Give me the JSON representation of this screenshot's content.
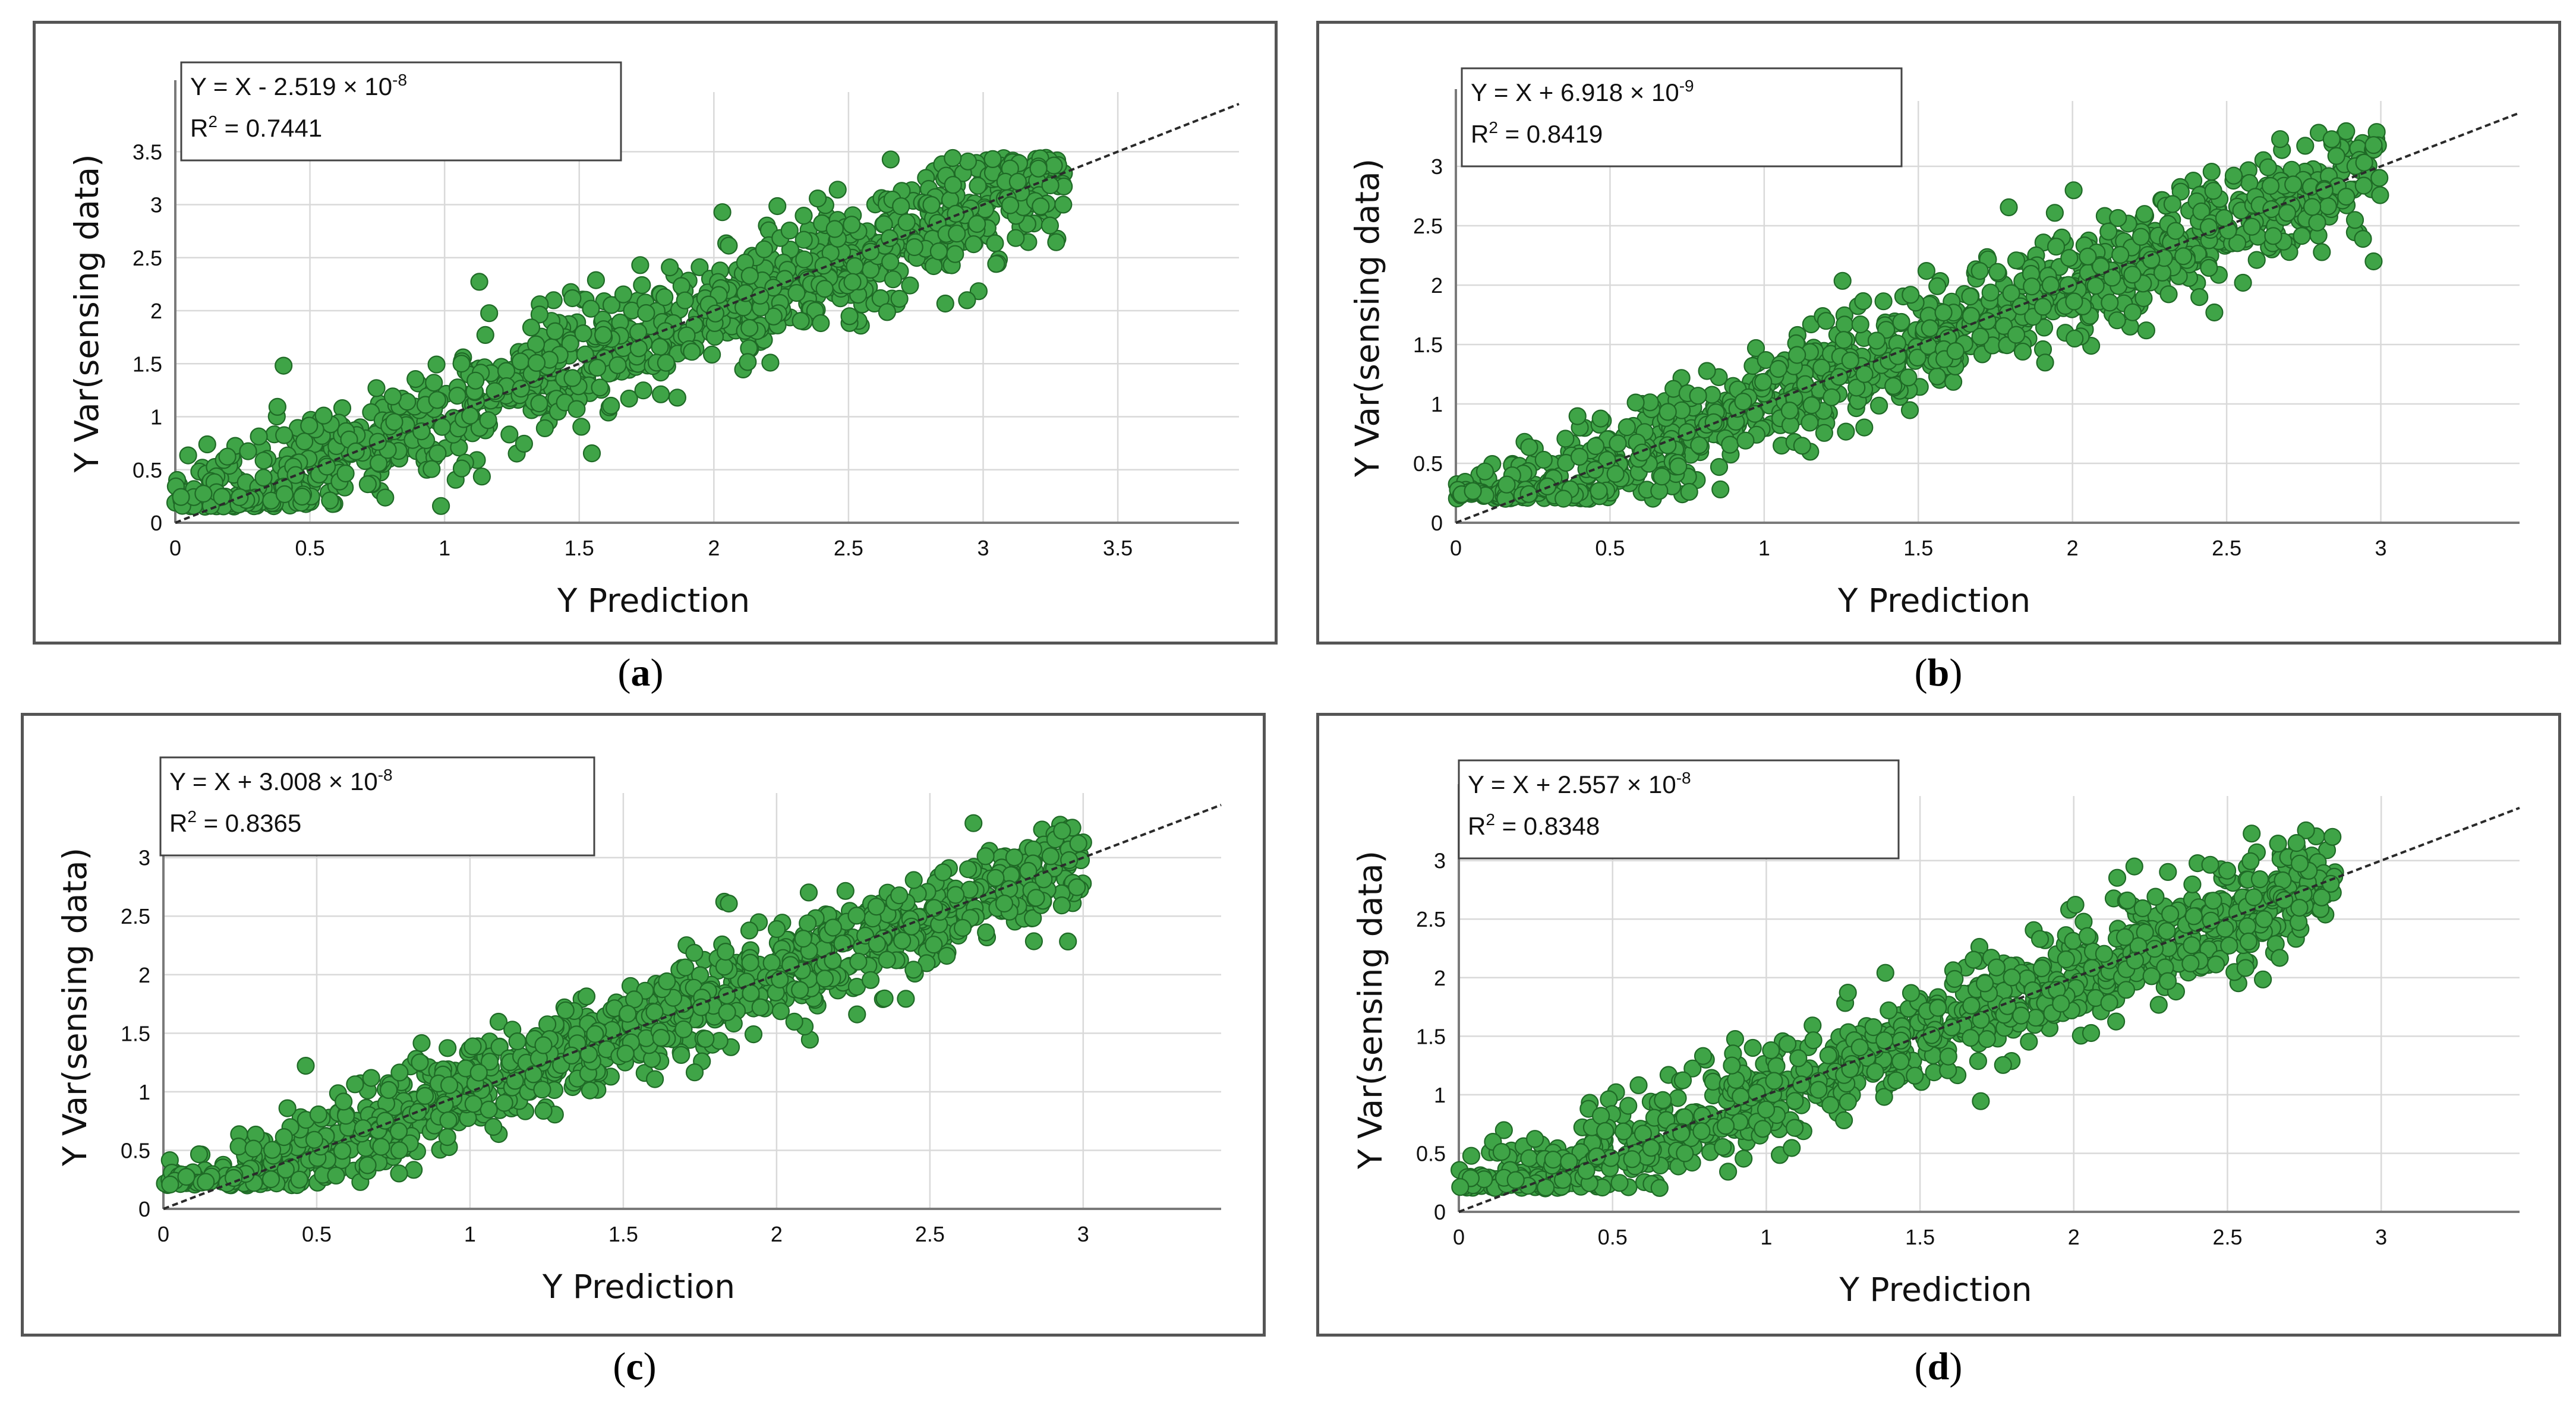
{
  "chart_data": [
    {
      "panel": "a",
      "type": "scatter",
      "equation": "Y = X - 2.519 × 10",
      "equation_exp": "-8",
      "r2_label": "R",
      "r2_sup": "2",
      "r2_value": "= 0.7441",
      "xlabel": "Y Prediction",
      "ylabel": "Y Var(sensing data)",
      "xlim": [
        0,
        3.95
      ],
      "ylim": [
        0,
        3.95
      ],
      "xticks": [
        "0",
        "0.5",
        "1",
        "1.5",
        "2",
        "2.5",
        "3",
        "3.5"
      ],
      "yticks": [
        "0",
        "0.5",
        "1",
        "1.5",
        "2",
        "2.5",
        "3",
        "3.5"
      ],
      "fit_line": {
        "slope": 1,
        "intercept": 0
      },
      "point_cloud": {
        "x_range": [
          0.0,
          3.3
        ],
        "spread": 0.35,
        "ymin": 0.15,
        "ymax": 3.45
      },
      "grid": true,
      "caption": "a"
    },
    {
      "panel": "b",
      "type": "scatter",
      "equation": "Y = X + 6.918 × 10",
      "equation_exp": "-9",
      "r2_label": "R",
      "r2_sup": "2",
      "r2_value": "= 0.8419",
      "xlabel": "Y Prediction",
      "ylabel": "Y Var(sensing data)",
      "xlim": [
        0,
        3.45
      ],
      "ylim": [
        0,
        3.45
      ],
      "xticks": [
        "0",
        "0.5",
        "1",
        "1.5",
        "2",
        "2.5",
        "3"
      ],
      "yticks": [
        "0",
        "0.5",
        "1",
        "1.5",
        "2",
        "2.5",
        "3"
      ],
      "fit_line": {
        "slope": 1,
        "intercept": 0
      },
      "point_cloud": {
        "x_range": [
          0.0,
          3.0
        ],
        "spread": 0.27,
        "ymin": 0.2,
        "ymax": 3.3
      },
      "grid": true,
      "caption": "b"
    },
    {
      "panel": "c",
      "type": "scatter",
      "equation": "Y = X + 3.008 × 10",
      "equation_exp": "-8",
      "r2_label": "R",
      "r2_sup": "2",
      "r2_value": "= 0.8365",
      "xlabel": "Y Prediction",
      "ylabel": "Y Var(sensing data)",
      "xlim": [
        0,
        3.45
      ],
      "ylim": [
        0,
        3.45
      ],
      "xticks": [
        "0",
        "0.5",
        "1",
        "1.5",
        "2",
        "2.5",
        "3"
      ],
      "yticks": [
        "0",
        "0.5",
        "1",
        "1.5",
        "2",
        "2.5",
        "3"
      ],
      "fit_line": {
        "slope": 1,
        "intercept": 0
      },
      "point_cloud": {
        "x_range": [
          0.0,
          3.0
        ],
        "spread": 0.27,
        "ymin": 0.2,
        "ymax": 3.3
      },
      "grid": true,
      "caption": "c"
    },
    {
      "panel": "d",
      "type": "scatter",
      "equation": "Y = X + 2.557 × 10",
      "equation_exp": "-8",
      "r2_label": "R",
      "r2_sup": "2",
      "r2_value": "= 0.8348",
      "xlabel": "Y Prediction",
      "ylabel": "Y Var(sensing data)",
      "xlim": [
        0,
        3.45
      ],
      "ylim": [
        0,
        3.45
      ],
      "xticks": [
        "0",
        "0.5",
        "1",
        "1.5",
        "2",
        "2.5",
        "3"
      ],
      "yticks": [
        "0",
        "0.5",
        "1",
        "1.5",
        "2",
        "2.5",
        "3"
      ],
      "fit_line": {
        "slope": 1,
        "intercept": 0
      },
      "point_cloud": {
        "x_range": [
          0.0,
          2.85
        ],
        "spread": 0.28,
        "ymin": 0.2,
        "ymax": 3.3
      },
      "grid": true,
      "caption": "d"
    }
  ],
  "colors": {
    "point_fill": "#3fa447",
    "point_stroke": "#1f6a26",
    "fit_line": "#2a2a2a",
    "grid": "#d9d9d9"
  }
}
